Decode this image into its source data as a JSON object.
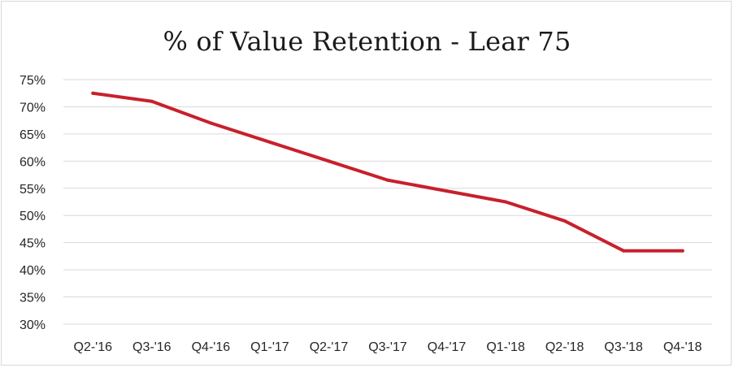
{
  "chart_data": {
    "type": "line",
    "title": "% of Value Retention - Lear 75",
    "categories": [
      "Q2-'16",
      "Q3-'16",
      "Q4-'16",
      "Q1-'17",
      "Q2-'17",
      "Q3-'17",
      "Q4-'17",
      "Q1-'18",
      "Q2-'18",
      "Q3-'18",
      "Q4-'18"
    ],
    "series": [
      {
        "values": [
          72.5,
          71.0,
          67.0,
          63.5,
          60.0,
          56.5,
          54.5,
          52.5,
          49.0,
          43.5,
          43.5
        ],
        "color": "#c8202c"
      }
    ],
    "ylim": [
      30,
      75
    ],
    "yticks": [
      30,
      35,
      40,
      45,
      50,
      55,
      60,
      65,
      70,
      75
    ],
    "ytick_labels": [
      "30%",
      "35%",
      "40%",
      "45%",
      "50%",
      "55%",
      "60%",
      "65%",
      "70%",
      "75%"
    ],
    "grid": true,
    "legend": "none",
    "xlabel": "",
    "ylabel": ""
  }
}
